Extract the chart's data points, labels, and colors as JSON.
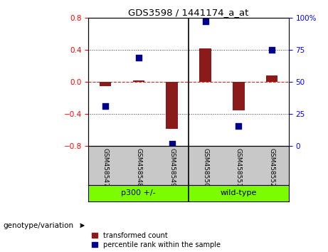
{
  "title": "GDS3598 / 1441174_a_at",
  "samples": [
    "GSM458547",
    "GSM458548",
    "GSM458549",
    "GSM458550",
    "GSM458551",
    "GSM458552"
  ],
  "red_values": [
    -0.05,
    0.02,
    -0.58,
    0.42,
    -0.35,
    0.08
  ],
  "blue_percentiles": [
    31,
    69,
    2,
    97,
    16,
    75
  ],
  "ylim": [
    -0.8,
    0.8
  ],
  "yticks_left": [
    -0.8,
    -0.4,
    0.0,
    0.4,
    0.8
  ],
  "yticks_right": [
    0,
    25,
    50,
    75,
    100
  ],
  "group_divider": 2.5,
  "bar_color": "#8B1A1A",
  "dot_color": "#00008B",
  "bar_width": 0.35,
  "dot_size": 40,
  "genotype_label": "genotype/variation",
  "group1_label": "p300 +/-",
  "group2_label": "wild-type",
  "legend_red": "transformed count",
  "legend_blue": "percentile rank within the sample",
  "background_color": "#ffffff",
  "plot_bg": "#ffffff",
  "label_area_bg": "#c8c8c8",
  "group_area_bg": "#7CFC00"
}
